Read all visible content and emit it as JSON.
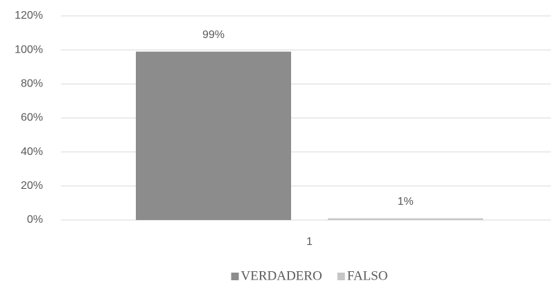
{
  "chart_data": {
    "type": "bar",
    "categories": [
      "1"
    ],
    "series": [
      {
        "name": "VERDADERO",
        "color": "#8c8c8c",
        "values": [
          99
        ],
        "value_labels": [
          "99%"
        ]
      },
      {
        "name": "FALSO",
        "color": "#c6c6c6",
        "values": [
          1
        ],
        "value_labels": [
          "1%"
        ]
      }
    ],
    "ylim": [
      0,
      120
    ],
    "yticks": [
      {
        "value": 0,
        "label": "0%"
      },
      {
        "value": 20,
        "label": "20%"
      },
      {
        "value": 40,
        "label": "40%"
      },
      {
        "value": 60,
        "label": "60%"
      },
      {
        "value": 80,
        "label": "80%"
      },
      {
        "value": 100,
        "label": "100%"
      },
      {
        "value": 120,
        "label": "120%"
      }
    ],
    "grid": true,
    "legend": "bottom"
  }
}
